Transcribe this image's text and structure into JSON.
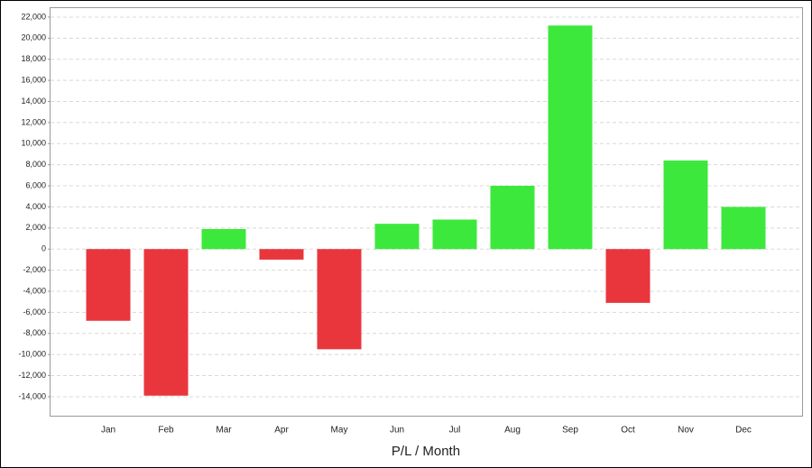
{
  "chart_data": {
    "type": "bar",
    "x_label": "P/L / Month",
    "categories": [
      "Jan",
      "Feb",
      "Mar",
      "Apr",
      "May",
      "Jun",
      "Jul",
      "Aug",
      "Sep",
      "Oct",
      "Nov",
      "Dec"
    ],
    "values": [
      -6800,
      -13900,
      1900,
      -1000,
      -9500,
      2400,
      2800,
      6000,
      21200,
      -5100,
      8400,
      4000
    ],
    "colors": [
      "#e8363c",
      "#e8363c",
      "#3de83d",
      "#e8363c",
      "#e8363c",
      "#3de83d",
      "#3de83d",
      "#3de83d",
      "#3de83d",
      "#e8363c",
      "#3de83d",
      "#3de83d"
    ],
    "ylim": [
      -15800,
      22850
    ],
    "yticks": [
      {
        "value": 22000,
        "label": "22,000"
      },
      {
        "value": 20000,
        "label": "20,000"
      },
      {
        "value": 18000,
        "label": "18,000"
      },
      {
        "value": 16000,
        "label": "16,000"
      },
      {
        "value": 14000,
        "label": "14,000"
      },
      {
        "value": 12000,
        "label": "12,000"
      },
      {
        "value": 10000,
        "label": "10,000"
      },
      {
        "value": 8000,
        "label": "8,000"
      },
      {
        "value": 6000,
        "label": "6,000"
      },
      {
        "value": 4000,
        "label": "4,000"
      },
      {
        "value": 2000,
        "label": "2,000"
      },
      0,
      {
        "value": -2000,
        "label": "-2,000"
      },
      {
        "value": -4000,
        "label": "-4,000"
      },
      {
        "value": -6000,
        "label": "-6,000"
      },
      {
        "value": -8000,
        "label": "-8,000"
      },
      {
        "value": -10000,
        "label": "-10,000"
      },
      {
        "value": -12000,
        "label": "-12,000"
      },
      {
        "value": -14000,
        "label": "-14,000"
      }
    ],
    "grid": true
  }
}
